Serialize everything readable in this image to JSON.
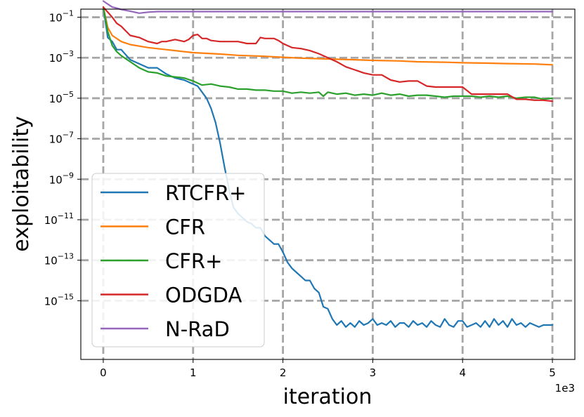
{
  "chart_data": {
    "type": "line",
    "title": "",
    "xlabel": "iteration",
    "ylabel": "exploitability",
    "x_offset_label": "1e3",
    "xscale": "linear",
    "yscale": "log",
    "xlim": [
      -0.25,
      5.25
    ],
    "ylim_log10": [
      -17.9,
      -0.6
    ],
    "x_ticks": [
      0,
      1,
      2,
      3,
      4,
      5
    ],
    "x_tick_labels": [
      "0",
      "1",
      "2",
      "3",
      "4",
      "5"
    ],
    "y_ticks_log10": [
      -1,
      -3,
      -5,
      -7,
      -9,
      -11,
      -13,
      -15
    ],
    "y_tick_labels": [
      {
        "base": "10",
        "exp": "−1"
      },
      {
        "base": "10",
        "exp": "−3"
      },
      {
        "base": "10",
        "exp": "−5"
      },
      {
        "base": "10",
        "exp": "−7"
      },
      {
        "base": "10",
        "exp": "−9"
      },
      {
        "base": "10",
        "exp": "−11"
      },
      {
        "base": "10",
        "exp": "−13"
      },
      {
        "base": "10",
        "exp": "−15"
      }
    ],
    "grid": true,
    "legend_position": "lower-left",
    "series": [
      {
        "name": "RTCFR+",
        "color": "#1f77b4",
        "x": [
          0,
          0.05,
          0.1,
          0.15,
          0.2,
          0.3,
          0.4,
          0.5,
          0.6,
          0.7,
          0.8,
          0.9,
          1.0,
          1.05,
          1.1,
          1.15,
          1.2,
          1.25,
          1.3,
          1.35,
          1.4,
          1.45,
          1.5,
          1.55,
          1.6,
          1.65,
          1.7,
          1.75,
          1.8,
          1.85,
          1.9,
          1.95,
          2.0,
          2.05,
          2.1,
          2.15,
          2.2,
          2.25,
          2.3,
          2.35,
          2.4,
          2.45,
          2.5,
          2.55,
          2.6,
          2.65,
          2.7,
          2.75,
          2.8,
          2.85,
          2.9,
          2.95,
          3.0,
          3.05,
          3.1,
          3.15,
          3.2,
          3.25,
          3.3,
          3.35,
          3.4,
          3.45,
          3.5,
          3.55,
          3.6,
          3.65,
          3.7,
          3.75,
          3.8,
          3.85,
          3.9,
          3.95,
          4.0,
          4.05,
          4.1,
          4.15,
          4.2,
          4.25,
          4.3,
          4.35,
          4.4,
          4.45,
          4.5,
          4.55,
          4.6,
          4.65,
          4.7,
          4.75,
          4.8,
          4.85,
          4.9,
          4.95,
          5.0
        ],
        "log10_values": [
          -0.5,
          -2.0,
          -2.2,
          -2.6,
          -2.6,
          -3.1,
          -3.3,
          -3.5,
          -3.5,
          -3.8,
          -4.0,
          -4.1,
          -4.3,
          -4.4,
          -4.7,
          -5.0,
          -5.5,
          -6.2,
          -7.2,
          -8.4,
          -9.5,
          -10.4,
          -10.7,
          -10.9,
          -11.1,
          -11.2,
          -11.4,
          -11.4,
          -11.8,
          -12.0,
          -12.2,
          -12.2,
          -12.6,
          -13.1,
          -13.4,
          -13.6,
          -13.8,
          -14.0,
          -14.0,
          -14.4,
          -14.6,
          -15.3,
          -15.4,
          -15.9,
          -16.2,
          -16.0,
          -16.3,
          -16.1,
          -16.3,
          -16.0,
          -16.2,
          -16.1,
          -15.9,
          -16.2,
          -16.1,
          -16.2,
          -16.0,
          -16.3,
          -16.1,
          -16.1,
          -16.3,
          -16.0,
          -16.2,
          -16.1,
          -16.3,
          -16.0,
          -16.2,
          -16.3,
          -15.9,
          -16.2,
          -16.3,
          -16.0,
          -16.0,
          -16.3,
          -16.2,
          -16.1,
          -16.3,
          -16.0,
          -16.3,
          -15.9,
          -16.2,
          -16.0,
          -16.3,
          -15.9,
          -16.2,
          -16.1,
          -16.3,
          -16.1,
          -16.2,
          -16.3,
          -16.2,
          -16.2,
          -16.2
        ]
      },
      {
        "name": "CFR",
        "color": "#ff7f0e",
        "x": [
          0,
          0.05,
          0.1,
          0.2,
          0.3,
          0.5,
          0.7,
          1.0,
          1.3,
          1.5,
          1.8,
          2.0,
          2.2,
          2.5,
          2.8,
          3.0,
          3.3,
          3.5,
          3.8,
          4.0,
          4.3,
          4.5,
          4.8,
          5.0
        ],
        "log10_values": [
          -0.5,
          -1.5,
          -1.9,
          -2.2,
          -2.35,
          -2.5,
          -2.6,
          -2.75,
          -2.82,
          -2.88,
          -2.93,
          -2.98,
          -3.02,
          -3.06,
          -3.1,
          -3.13,
          -3.16,
          -3.2,
          -3.22,
          -3.25,
          -3.27,
          -3.29,
          -3.31,
          -3.35
        ]
      },
      {
        "name": "CFR+",
        "color": "#2ca02c",
        "x": [
          0,
          0.05,
          0.1,
          0.15,
          0.2,
          0.3,
          0.4,
          0.5,
          0.6,
          0.7,
          0.8,
          0.9,
          1.0,
          1.1,
          1.2,
          1.3,
          1.4,
          1.5,
          1.6,
          1.7,
          1.8,
          1.9,
          2.0,
          2.1,
          2.2,
          2.3,
          2.4,
          2.45,
          2.5,
          2.6,
          2.7,
          2.8,
          2.9,
          3.0,
          3.1,
          3.2,
          3.3,
          3.4,
          3.5,
          3.6,
          3.7,
          3.8,
          3.9,
          4.0,
          4.1,
          4.2,
          4.3,
          4.4,
          4.5,
          4.6,
          4.7,
          4.8,
          4.9,
          5.0
        ],
        "log10_values": [
          -0.5,
          -1.7,
          -2.4,
          -2.7,
          -2.9,
          -3.2,
          -3.5,
          -3.7,
          -3.75,
          -3.9,
          -3.95,
          -4.0,
          -4.15,
          -4.35,
          -4.3,
          -4.4,
          -4.45,
          -4.55,
          -4.55,
          -4.6,
          -4.6,
          -4.65,
          -4.65,
          -4.75,
          -4.7,
          -4.75,
          -4.7,
          -4.9,
          -4.7,
          -4.8,
          -4.75,
          -4.85,
          -4.8,
          -4.85,
          -4.75,
          -4.85,
          -4.8,
          -4.9,
          -4.85,
          -4.85,
          -4.9,
          -4.95,
          -4.9,
          -4.9,
          -4.9,
          -4.95,
          -4.9,
          -4.95,
          -4.9,
          -5.0,
          -4.95,
          -4.95,
          -5.05,
          -5.0
        ]
      },
      {
        "name": "ODGDA",
        "color": "#d62728",
        "x": [
          0,
          0.05,
          0.1,
          0.15,
          0.2,
          0.3,
          0.4,
          0.5,
          0.6,
          0.65,
          0.7,
          0.8,
          0.9,
          0.95,
          1.0,
          1.05,
          1.1,
          1.15,
          1.2,
          1.3,
          1.4,
          1.5,
          1.6,
          1.7,
          1.75,
          1.8,
          1.9,
          1.95,
          2.0,
          2.1,
          2.2,
          2.3,
          2.4,
          2.5,
          2.6,
          2.7,
          2.8,
          2.9,
          3.0,
          3.1,
          3.2,
          3.3,
          3.4,
          3.5,
          3.6,
          3.7,
          3.8,
          3.9,
          4.0,
          4.1,
          4.2,
          4.3,
          4.4,
          4.5,
          4.6,
          4.7,
          4.8,
          4.9,
          5.0
        ],
        "log10_values": [
          -0.5,
          -0.75,
          -1.0,
          -1.3,
          -1.45,
          -1.9,
          -2.0,
          -2.2,
          -2.3,
          -2.2,
          -2.2,
          -2.1,
          -2.2,
          -2.1,
          -1.9,
          -1.85,
          -2.05,
          -2.05,
          -2.15,
          -2.2,
          -2.2,
          -2.2,
          -2.3,
          -2.3,
          -2.0,
          -2.05,
          -2.05,
          -2.15,
          -2.3,
          -2.5,
          -2.55,
          -2.65,
          -2.8,
          -3.0,
          -3.2,
          -3.45,
          -3.6,
          -3.75,
          -3.85,
          -3.85,
          -4.1,
          -4.2,
          -4.15,
          -4.15,
          -4.4,
          -4.45,
          -4.45,
          -4.45,
          -4.45,
          -4.8,
          -4.8,
          -4.8,
          -4.8,
          -4.8,
          -5.05,
          -5.05,
          -5.1,
          -5.1,
          -5.15
        ]
      },
      {
        "name": "N-RaD",
        "color": "#9467bd",
        "x": [
          0,
          0.05,
          0.1,
          0.15,
          0.2,
          0.3,
          0.4,
          0.5,
          0.6,
          0.8,
          1.0,
          1.5,
          2.0,
          2.5,
          3.0,
          3.5,
          4.0,
          4.5,
          5.0
        ],
        "log10_values": [
          -0.2,
          -0.35,
          -0.5,
          -0.55,
          -0.62,
          -0.7,
          -0.8,
          -0.75,
          -0.72,
          -0.72,
          -0.72,
          -0.72,
          -0.72,
          -0.72,
          -0.72,
          -0.72,
          -0.72,
          -0.72,
          -0.72
        ]
      }
    ]
  }
}
